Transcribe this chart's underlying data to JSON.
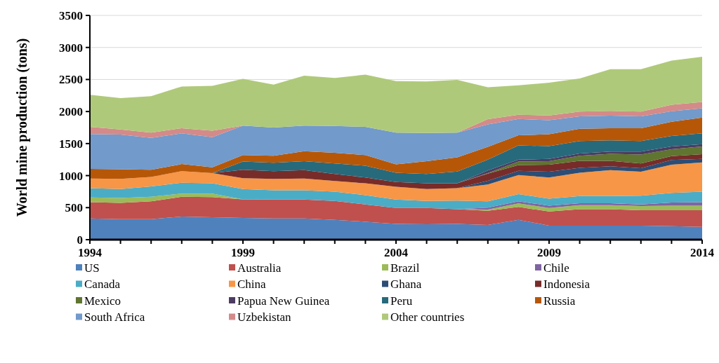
{
  "chart_data": {
    "type": "area",
    "stacked": true,
    "ylabel": "World mine production (tons)",
    "x": [
      1994,
      1995,
      1996,
      1997,
      1998,
      1999,
      2000,
      2001,
      2002,
      2003,
      2004,
      2005,
      2006,
      2007,
      2008,
      2009,
      2010,
      2011,
      2012,
      2013,
      2014
    ],
    "xlim": [
      1994,
      2014
    ],
    "xticks": [
      1994,
      {
        "value": 1995,
        "label": null
      },
      {
        "value": 1996,
        "label": null
      },
      {
        "value": 1997,
        "label": null
      },
      {
        "value": 1998,
        "label": null
      },
      1999,
      {
        "value": 2000,
        "label": null
      },
      {
        "value": 2001,
        "label": null
      },
      {
        "value": 2002,
        "label": null
      },
      {
        "value": 2003,
        "label": null
      },
      2004,
      {
        "value": 2005,
        "label": null
      },
      {
        "value": 2006,
        "label": null
      },
      {
        "value": 2007,
        "label": null
      },
      {
        "value": 2008,
        "label": null
      },
      2009,
      {
        "value": 2010,
        "label": null
      },
      {
        "value": 2011,
        "label": null
      },
      {
        "value": 2012,
        "label": null
      },
      {
        "value": 2013,
        "label": null
      },
      2014
    ],
    "ylim": [
      0,
      3500
    ],
    "yticks": [
      0,
      500,
      1000,
      1500,
      2000,
      2500,
      3000,
      3500
    ],
    "grid": "y",
    "legend": "bottom",
    "series": [
      {
        "name": "US",
        "color": "#4f81bd",
        "values": [
          330,
          320,
          320,
          360,
          350,
          340,
          330,
          330,
          310,
          280,
          245,
          240,
          245,
          230,
          310,
          220,
          220,
          220,
          220,
          210,
          200
        ]
      },
      {
        "name": "Australia",
        "color": "#c0504d",
        "values": [
          255,
          255,
          280,
          310,
          315,
          290,
          295,
          295,
          295,
          270,
          250,
          255,
          230,
          220,
          200,
          220,
          255,
          255,
          240,
          250,
          260
        ]
      },
      {
        "name": "Brazil",
        "color": "#9bbb59",
        "values": [
          75,
          75,
          70,
          50,
          55,
          0,
          0,
          0,
          0,
          0,
          0,
          0,
          0,
          20,
          55,
          55,
          65,
          65,
          65,
          70,
          70
        ]
      },
      {
        "name": "Chile",
        "color": "#8064a2",
        "values": [
          0,
          0,
          0,
          0,
          0,
          0,
          0,
          0,
          0,
          0,
          0,
          0,
          0,
          30,
          35,
          35,
          30,
          30,
          25,
          50,
          55
        ]
      },
      {
        "name": "Canada",
        "color": "#4bacc6",
        "values": [
          145,
          140,
          160,
          170,
          160,
          160,
          145,
          145,
          145,
          145,
          130,
          110,
          135,
          100,
          110,
          110,
          110,
          110,
          135,
          150,
          165
        ]
      },
      {
        "name": "China",
        "color": "#f79646",
        "values": [
          150,
          160,
          150,
          180,
          160,
          170,
          180,
          185,
          165,
          185,
          200,
          185,
          195,
          260,
          300,
          330,
          365,
          405,
          375,
          440,
          455
        ]
      },
      {
        "name": "Ghana",
        "color": "#2c4d75",
        "values": [
          0,
          0,
          0,
          0,
          0,
          0,
          0,
          0,
          0,
          0,
          0,
          0,
          0,
          60,
          65,
          90,
          75,
          60,
          55,
          75,
          55
        ]
      },
      {
        "name": "Indonesia",
        "color": "#772c2a",
        "values": [
          0,
          0,
          0,
          0,
          0,
          130,
          120,
          130,
          110,
          90,
          75,
          90,
          75,
          110,
          90,
          110,
          110,
          85,
          75,
          60,
          75
        ]
      },
      {
        "name": "Mexico",
        "color": "#5f7530",
        "values": [
          0,
          0,
          0,
          0,
          0,
          0,
          0,
          0,
          0,
          0,
          0,
          0,
          0,
          10,
          55,
          55,
          80,
          110,
          140,
          105,
          120
        ]
      },
      {
        "name": "Papua New Guinea",
        "color": "#4d3b62",
        "values": [
          0,
          0,
          0,
          0,
          0,
          0,
          0,
          0,
          0,
          0,
          0,
          0,
          0,
          40,
          30,
          35,
          35,
          35,
          45,
          45,
          35
        ]
      },
      {
        "name": "Peru",
        "color": "#276a7c",
        "values": [
          0,
          0,
          0,
          0,
          0,
          130,
          130,
          140,
          165,
          185,
          145,
          145,
          185,
          170,
          220,
          200,
          195,
          175,
          165,
          165,
          170
        ]
      },
      {
        "name": "Russia",
        "color": "#b65708",
        "values": [
          150,
          150,
          110,
          110,
          90,
          100,
          110,
          155,
          165,
          165,
          130,
          200,
          220,
          200,
          160,
          185,
          190,
          190,
          200,
          220,
          245
        ]
      },
      {
        "name": "South Africa",
        "color": "#729aca",
        "values": [
          545,
          540,
          500,
          480,
          470,
          460,
          440,
          400,
          420,
          440,
          495,
          440,
          385,
          350,
          255,
          220,
          195,
          195,
          185,
          165,
          145
        ]
      },
      {
        "name": "Uzbekistan",
        "color": "#d48a89",
        "values": [
          110,
          80,
          80,
          80,
          100,
          0,
          0,
          0,
          0,
          0,
          0,
          0,
          0,
          80,
          65,
          75,
          75,
          75,
          75,
          100,
          100
        ]
      },
      {
        "name": "Other countries",
        "color": "#afc97a",
        "values": [
          500,
          490,
          570,
          650,
          700,
          730,
          670,
          780,
          750,
          815,
          805,
          805,
          825,
          500,
          460,
          510,
          515,
          650,
          660,
          690,
          705
        ]
      }
    ]
  }
}
